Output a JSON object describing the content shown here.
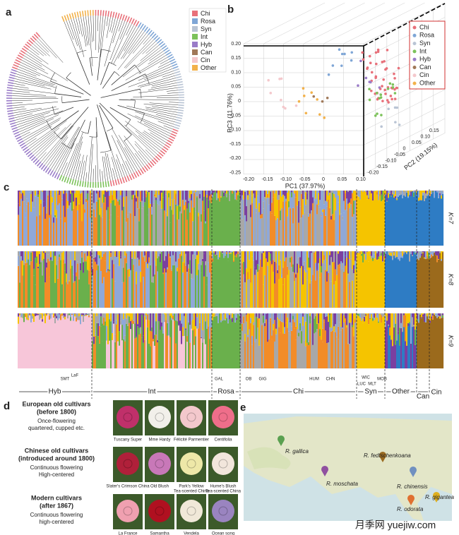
{
  "panels": {
    "a": {
      "label": "a",
      "legend": [
        {
          "name": "Chi",
          "color": "#e8707a"
        },
        {
          "name": "Rosa",
          "color": "#7fa6d6"
        },
        {
          "name": "Syn",
          "color": "#b9c4d4"
        },
        {
          "name": "Int",
          "color": "#7cc25a"
        },
        {
          "name": "Hyb",
          "color": "#9a7cc8"
        },
        {
          "name": "Can",
          "color": "#a07858"
        },
        {
          "name": "Cin",
          "color": "#f4c8cc"
        },
        {
          "name": "Other",
          "color": "#f2b14a"
        }
      ]
    },
    "b": {
      "label": "b",
      "legend": [
        "Chi",
        "Rosa",
        "Syn",
        "Int",
        "Hyb",
        "Can",
        "Cin",
        "Other"
      ],
      "z_axis": "PC3 (11.76%)",
      "x_axis": "PC1 (37.97%)",
      "y_axis": "PC2 (19.15%)",
      "z_ticks": [
        "0.20",
        "0.15",
        "0.10",
        "0.05",
        "0",
        "-0.05",
        "-0.10",
        "-0.15",
        "-0.20",
        "-0.25"
      ],
      "x_ticks": [
        "-0.20",
        "-0.15",
        "-0.10",
        "-0.05",
        "0",
        "0.05",
        "0.10"
      ],
      "y_ticks": [
        "0.15",
        "0.10",
        "0.05",
        "0",
        "-0.05",
        "-0.10",
        "-0.15",
        "-0.20"
      ]
    },
    "c": {
      "label": "c",
      "rows": [
        "K=7",
        "K=8",
        "K=9"
      ],
      "accessions": [
        "SMT",
        "LaF",
        "GAL",
        "OB",
        "GIG",
        "HUM",
        "CHN",
        "WIC",
        "LUC",
        "MLT",
        "MOB"
      ],
      "groups": [
        "Hyb",
        "Int",
        "Rosa",
        "Chi",
        "Syn",
        "Other",
        "Can",
        "Cin"
      ]
    },
    "d": {
      "label": "d",
      "rows": [
        {
          "title": "European old cultivars",
          "period": "(before 1800)",
          "traits": [
            "Once-flowering",
            "quartered, cupped etc."
          ],
          "cultivars": [
            [
              "Tuscany Super"
            ],
            [
              "Mme Hardy"
            ],
            [
              "Félicité Parmentier"
            ],
            [
              "Centifolia"
            ]
          ]
        },
        {
          "title": "Chinese old cultivars",
          "period": "(introduced around 1800)",
          "traits": [
            "Continuous flowering",
            "High-centered"
          ],
          "cultivars": [
            [
              "Slater's Crimson China"
            ],
            [
              "Old Blush"
            ],
            [
              "Park's Yellow",
              "Tea-scented China"
            ],
            [
              "Hume's Blush",
              "Tea-scented China"
            ]
          ]
        },
        {
          "title": "Modern cultivars",
          "period": "(after 1867)",
          "traits": [
            "Continuous flowering",
            "high-centered"
          ],
          "cultivars": [
            [
              "La France"
            ],
            [
              "Samantha"
            ],
            [
              "Vendela"
            ],
            [
              "Ocean song"
            ]
          ]
        }
      ]
    },
    "e": {
      "label": "e",
      "species": [
        "R. gallica",
        "R. fedtschenkoana",
        "R. moschata",
        "R. chinensis",
        "R. gigantea",
        "R. odorata"
      ]
    }
  },
  "watermark": "月季网 yuejiw.com"
}
